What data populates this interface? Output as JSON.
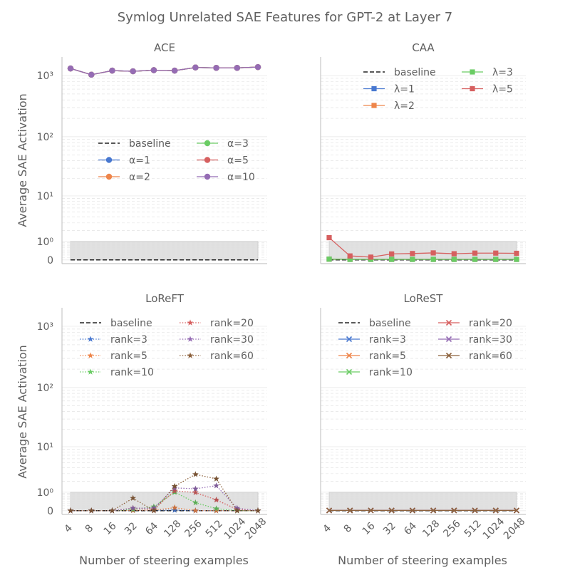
{
  "figure": {
    "title": "Symlog Unrelated SAE Features for GPT-2 at Layer 7",
    "ylabel": "Average SAE Activation",
    "xlabel": "Number of steering examples"
  },
  "colors": {
    "text": "#606060",
    "grid": "#e4e4e4",
    "axis": "#c8c8c8",
    "band": "#dcdcdc",
    "baseline": "#222222"
  },
  "chart_data": [
    {
      "type": "line",
      "title": "ACE",
      "yscale": "symlog",
      "ylim": [
        -0.15,
        2000
      ],
      "x": [
        4,
        8,
        16,
        32,
        64,
        128,
        256,
        512,
        1024,
        2048
      ],
      "xticks": [
        "4",
        "8",
        "16",
        "32",
        "64",
        "128",
        "256",
        "512",
        "1024",
        "2048"
      ],
      "yticks": [
        {
          "value": 0,
          "label": "0"
        },
        {
          "value": 1,
          "label": "10⁰"
        },
        {
          "value": 10,
          "label": "10¹"
        },
        {
          "value": 100,
          "label": "10²"
        },
        {
          "value": 1000,
          "label": "10³"
        }
      ],
      "shaded_band": [
        0,
        1
      ],
      "legend_position": "center-left",
      "legend_columns": 2,
      "marker": "circle",
      "baseline": {
        "name": "baseline",
        "value": 0
      },
      "series": [
        {
          "name": "α=1",
          "color": "#4878d0",
          "style": "solid",
          "values": [
            1300,
            1030,
            1200,
            1170,
            1220,
            1200,
            1350,
            1330,
            1330,
            1370
          ]
        },
        {
          "name": "α=2",
          "color": "#ee854a",
          "style": "solid",
          "values": [
            1300,
            1030,
            1200,
            1170,
            1220,
            1200,
            1350,
            1330,
            1330,
            1370
          ]
        },
        {
          "name": "α=3",
          "color": "#6acc64",
          "style": "solid",
          "values": [
            1300,
            1030,
            1200,
            1170,
            1220,
            1200,
            1350,
            1330,
            1330,
            1370
          ]
        },
        {
          "name": "α=5",
          "color": "#d65f5f",
          "style": "solid",
          "values": [
            1300,
            1030,
            1200,
            1170,
            1220,
            1200,
            1350,
            1330,
            1330,
            1370
          ]
        },
        {
          "name": "α=10",
          "color": "#956cb4",
          "style": "solid",
          "values": [
            1300,
            1030,
            1200,
            1170,
            1220,
            1200,
            1350,
            1330,
            1330,
            1370
          ]
        }
      ]
    },
    {
      "type": "line",
      "title": "CAA",
      "yscale": "symlog",
      "ylim": [
        -0.15,
        2000
      ],
      "x": [
        4,
        8,
        16,
        32,
        64,
        128,
        256,
        512,
        1024,
        2048
      ],
      "xticks": [
        "4",
        "8",
        "16",
        "32",
        "64",
        "128",
        "256",
        "512",
        "1024",
        "2048"
      ],
      "yticks": [],
      "shaded_band": [
        0,
        1
      ],
      "legend_position": "top",
      "legend_columns": 2,
      "marker": "square",
      "baseline": {
        "name": "baseline",
        "value": 0
      },
      "series": [
        {
          "name": "λ=1",
          "color": "#4878d0",
          "style": "solid",
          "values": [
            0.03,
            0.02,
            0.02,
            0.02,
            0.02,
            0.02,
            0.02,
            0.02,
            0.02,
            0.02
          ]
        },
        {
          "name": "λ=2",
          "color": "#ee854a",
          "style": "solid",
          "values": [
            0.03,
            0.02,
            0.02,
            0.02,
            0.02,
            0.02,
            0.02,
            0.02,
            0.02,
            0.02
          ]
        },
        {
          "name": "λ=3",
          "color": "#6acc64",
          "style": "solid",
          "values": [
            0.03,
            0.02,
            0.02,
            0.02,
            0.02,
            0.02,
            0.02,
            0.02,
            0.02,
            0.02
          ]
        },
        {
          "name": "λ=5",
          "color": "#d65f5f",
          "style": "solid",
          "values": [
            1.3,
            0.16,
            0.11,
            0.25,
            0.27,
            0.3,
            0.26,
            0.29,
            0.29,
            0.28
          ]
        }
      ]
    },
    {
      "type": "line",
      "title": "LoReFT",
      "yscale": "symlog",
      "ylim": [
        -0.15,
        2000
      ],
      "x": [
        4,
        8,
        16,
        32,
        64,
        128,
        256,
        512,
        1024,
        2048
      ],
      "xticks": [
        "4",
        "8",
        "16",
        "32",
        "64",
        "128",
        "256",
        "512",
        "1024",
        "2048"
      ],
      "yticks": [
        {
          "value": 0,
          "label": "0"
        },
        {
          "value": 1,
          "label": "10⁰"
        },
        {
          "value": 10,
          "label": "10¹"
        },
        {
          "value": 100,
          "label": "10²"
        },
        {
          "value": 1000,
          "label": "10³"
        }
      ],
      "shaded_band": [
        0,
        1
      ],
      "legend_position": "top",
      "legend_columns": 2,
      "marker": "star",
      "baseline": {
        "name": "baseline",
        "value": 0
      },
      "series": [
        {
          "name": "rank=3",
          "color": "#4878d0",
          "style": "dotted",
          "values": [
            0,
            0,
            0,
            0.01,
            0.02,
            0.02,
            0,
            0,
            0,
            0
          ]
        },
        {
          "name": "rank=5",
          "color": "#ee854a",
          "style": "dotted",
          "values": [
            0,
            0,
            0,
            0.01,
            0.02,
            0.12,
            0,
            0,
            0,
            0
          ]
        },
        {
          "name": "rank=10",
          "color": "#6acc64",
          "style": "dotted",
          "values": [
            0,
            0,
            0,
            0.05,
            0.16,
            1.0,
            0.35,
            0.08,
            0,
            0
          ]
        },
        {
          "name": "rank=20",
          "color": "#d65f5f",
          "style": "dotted",
          "values": [
            0,
            0,
            0,
            0.1,
            0.05,
            1.1,
            0.98,
            0.5,
            0.05,
            0
          ]
        },
        {
          "name": "rank=30",
          "color": "#956cb4",
          "style": "dotted",
          "values": [
            0,
            0,
            0,
            0.1,
            0.1,
            1.35,
            1.27,
            1.55,
            0.1,
            0
          ]
        },
        {
          "name": "rank=60",
          "color": "#8c613c",
          "style": "dotted",
          "values": [
            0,
            0,
            0,
            0.6,
            0,
            1.5,
            2.9,
            2.3,
            0,
            0
          ]
        }
      ]
    },
    {
      "type": "line",
      "title": "LoReST",
      "yscale": "symlog",
      "ylim": [
        -0.15,
        2000
      ],
      "x": [
        4,
        8,
        16,
        32,
        64,
        128,
        256,
        512,
        1024,
        2048
      ],
      "xticks": [
        "4",
        "8",
        "16",
        "32",
        "64",
        "128",
        "256",
        "512",
        "1024",
        "2048"
      ],
      "yticks": [],
      "shaded_band": [
        0,
        1
      ],
      "legend_position": "top",
      "legend_columns": 2,
      "marker": "x",
      "baseline": {
        "name": "baseline",
        "value": 0
      },
      "series": [
        {
          "name": "rank=3",
          "color": "#4878d0",
          "style": "solid",
          "values": [
            0.01,
            0.01,
            0.01,
            0.01,
            0.01,
            0.01,
            0.01,
            0.01,
            0.01,
            0.01
          ]
        },
        {
          "name": "rank=5",
          "color": "#ee854a",
          "style": "solid",
          "values": [
            0.01,
            0.01,
            0.01,
            0.01,
            0.01,
            0.01,
            0.01,
            0.01,
            0.01,
            0.01
          ]
        },
        {
          "name": "rank=10",
          "color": "#6acc64",
          "style": "solid",
          "values": [
            0.01,
            0.01,
            0.01,
            0.01,
            0.01,
            0.01,
            0.01,
            0.01,
            0.01,
            0.01
          ]
        },
        {
          "name": "rank=20",
          "color": "#d65f5f",
          "style": "solid",
          "values": [
            0.01,
            0.01,
            0.01,
            0.01,
            0.01,
            0.01,
            0.01,
            0.01,
            0.01,
            0.01
          ]
        },
        {
          "name": "rank=30",
          "color": "#956cb4",
          "style": "solid",
          "values": [
            0.01,
            0.01,
            0.01,
            0.01,
            0.01,
            0.01,
            0.01,
            0.01,
            0.01,
            0.01
          ]
        },
        {
          "name": "rank=60",
          "color": "#8c613c",
          "style": "solid",
          "values": [
            0.01,
            0.01,
            0.01,
            0.01,
            0.01,
            0.01,
            0.01,
            0.01,
            0.01,
            0.01
          ]
        }
      ]
    }
  ]
}
